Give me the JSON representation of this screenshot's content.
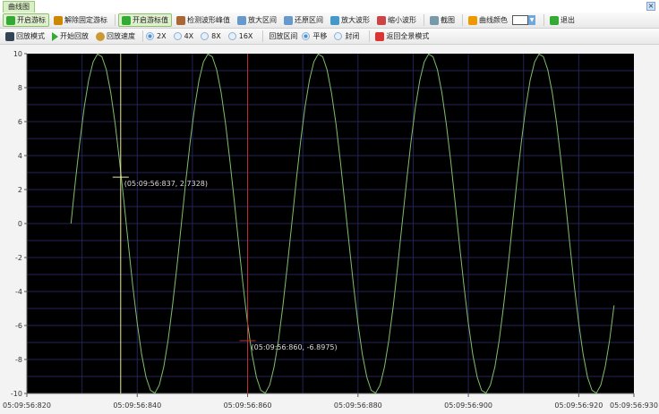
{
  "tab": {
    "label": "曲线图"
  },
  "toolbar1": [
    {
      "label": "开启游标",
      "icon": "cursor-icon",
      "active": true
    },
    {
      "label": "解除固定游标",
      "icon": "unpin-icon"
    },
    {
      "label": "开启游标值",
      "icon": "cursor-value-icon",
      "active": true
    },
    {
      "label": "检测波形峰值",
      "icon": "peak-detect-icon"
    },
    {
      "label": "放大区间",
      "icon": "zoom-range-icon"
    },
    {
      "label": "还原区间",
      "icon": "restore-range-icon"
    },
    {
      "label": "放大波形",
      "icon": "zoom-in-icon"
    },
    {
      "label": "缩小波形",
      "icon": "zoom-out-icon"
    },
    {
      "label": "截图",
      "icon": "screenshot-icon"
    },
    {
      "label": "曲线颜色",
      "icon": "palette-icon"
    },
    {
      "label": "退出",
      "icon": "exit-icon"
    }
  ],
  "curve_color": "#ffffff",
  "toolbar2": {
    "playback_mode": "回放模式",
    "start_playback": "开始回放",
    "playback_speed": "回放速度",
    "speeds": [
      "2X",
      "4X",
      "8X",
      "16X"
    ],
    "selected_speed": "2X",
    "playback_range": "回放区间",
    "range_modes": [
      "平移",
      "封闭"
    ],
    "selected_range_mode": "平移",
    "back_to_overview": "返回全景模式"
  },
  "chart_data": {
    "type": "line",
    "xlim": [
      "05:09:56:820",
      "05:09:56:930"
    ],
    "ylim": [
      -10,
      10
    ],
    "x_ticks": [
      "05:09:56:820",
      "05:09:56:840",
      "05:09:56:860",
      "05:09:56:880",
      "05:09:56:900",
      "05:09:56:920",
      "05:09:56:930"
    ],
    "y_ticks": [
      "10",
      "8",
      "6",
      "4",
      "2",
      "0",
      "-2",
      "-4",
      "-6",
      "-8",
      "-10"
    ],
    "grid": true,
    "background": "#000000",
    "line_color": "#7fbf6a",
    "waveform": {
      "shape": "sine",
      "amplitude": 10,
      "period_ms": 20,
      "first_peak": "05:09:56:833",
      "start": "05:09:56:828",
      "end": "05:09:56:927"
    },
    "cursors": [
      {
        "label": "(05:09:56:837, 2.7328)",
        "time_ms": 837,
        "value": 2.7328,
        "color": "#e8e8a0"
      },
      {
        "label": "(05:09:56:860, -6.8975)",
        "time_ms": 860,
        "value": -6.8975,
        "color": "#c03030"
      }
    ]
  }
}
